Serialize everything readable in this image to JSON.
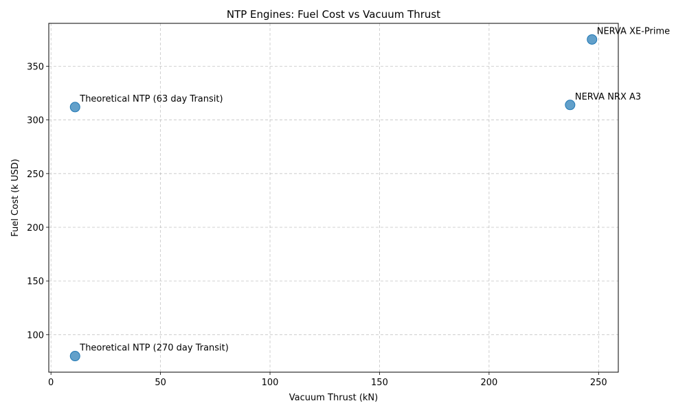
{
  "chart_data": {
    "type": "scatter",
    "title": "NTP Engines: Fuel Cost vs Vacuum Thrust",
    "xlabel": "Vacuum Thrust (kN)",
    "ylabel": "Fuel Cost (k USD)",
    "xlim": [
      -1,
      259
    ],
    "ylim": [
      65,
      390
    ],
    "xticks": [
      0,
      50,
      100,
      150,
      200,
      250
    ],
    "yticks": [
      100,
      150,
      200,
      250,
      300,
      350
    ],
    "grid": true,
    "marker_color": "#1f77b4",
    "points": [
      {
        "label": "NERVA XE-Prime",
        "x": 247,
        "y": 375
      },
      {
        "label": "NERVA NRX A3",
        "x": 237,
        "y": 314
      },
      {
        "label": "Theoretical NTP (63 day Transit)",
        "x": 11,
        "y": 312
      },
      {
        "label": "Theoretical NTP (270 day Transit)",
        "x": 11,
        "y": 80
      }
    ]
  }
}
